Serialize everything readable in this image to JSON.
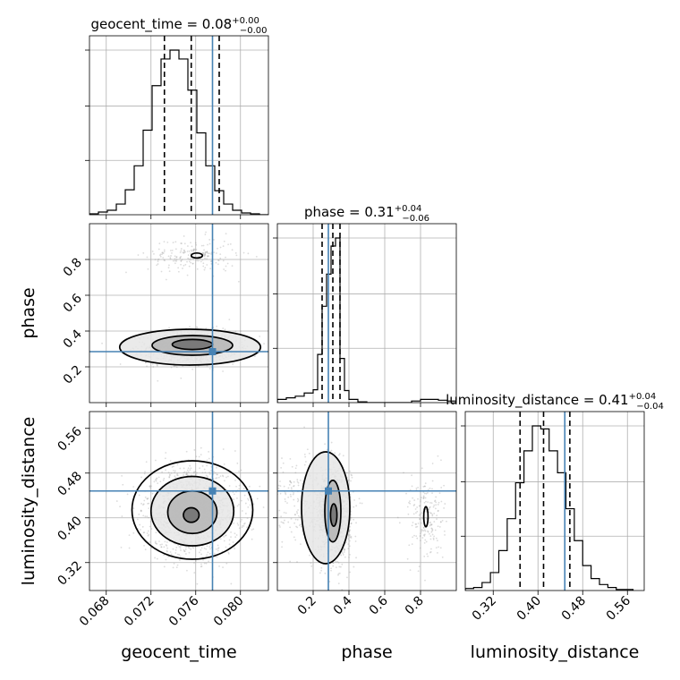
{
  "chart_data": {
    "type": "corner",
    "parameters": [
      "geocent_time",
      "phase",
      "luminosity_distance"
    ],
    "truth": {
      "geocent_time": 0.0775,
      "phase": 0.285,
      "luminosity_distance": 0.448
    },
    "colors": {
      "truth": "#4682b4",
      "hist": "#000000",
      "grid": "#b0b0b0",
      "scatter": "#9a9a9a"
    },
    "grid": true,
    "axes": {
      "geocent_time": {
        "range": [
          0.0665,
          0.0825
        ],
        "ticks": [
          0.068,
          0.072,
          0.076,
          0.08
        ],
        "tick_labels": [
          "0.068",
          "0.072",
          "0.076",
          "0.080"
        ]
      },
      "phase": {
        "range": [
          0.0,
          1.0
        ],
        "ticks": [
          0.2,
          0.4,
          0.6,
          0.8
        ],
        "tick_labels": [
          "0.2",
          "0.4",
          "0.6",
          "0.8"
        ]
      },
      "luminosity_distance": {
        "range": [
          0.27,
          0.59
        ],
        "ticks": [
          0.32,
          0.4,
          0.48,
          0.56
        ],
        "tick_labels": [
          "0.32",
          "0.40",
          "0.48",
          "0.56"
        ]
      }
    },
    "diagonal": [
      {
        "param": "geocent_time",
        "title": {
          "main": "geocent_time = 0.08",
          "sup": "+0.00",
          "sub": "−0.00"
        },
        "quantiles": [
          0.0732,
          0.0756,
          0.0781
        ],
        "bins": [
          0.0665,
          0.0673,
          0.0681,
          0.0689,
          0.0697,
          0.0705,
          0.0713,
          0.0721,
          0.0729,
          0.0737,
          0.0745,
          0.0753,
          0.0761,
          0.0769,
          0.0777,
          0.0785,
          0.0793,
          0.0801,
          0.0809,
          0.0817,
          0.0825
        ],
        "counts": [
          1,
          3,
          5,
          12,
          28,
          55,
          95,
          145,
          175,
          185,
          175,
          140,
          92,
          55,
          27,
          12,
          5,
          2,
          1,
          0
        ]
      },
      {
        "param": "phase",
        "title": {
          "main": "phase = 0.31",
          "sup": "+0.04",
          "sub": "−0.06"
        },
        "quantiles": [
          0.25,
          0.31,
          0.35
        ],
        "bins": [
          0.0,
          0.05,
          0.1,
          0.15,
          0.2,
          0.225,
          0.25,
          0.275,
          0.3,
          0.325,
          0.35,
          0.375,
          0.4,
          0.45,
          0.5,
          0.55,
          0.6,
          0.65,
          0.7,
          0.75,
          0.8,
          0.85,
          0.9,
          0.95,
          1.0
        ],
        "counts": [
          4,
          6,
          8,
          12,
          16,
          60,
          120,
          160,
          195,
          205,
          55,
          15,
          4,
          1,
          0,
          0,
          0,
          0,
          0,
          2,
          4,
          4,
          3,
          2
        ]
      },
      {
        "param": "luminosity_distance",
        "title": {
          "main": "luminosity_distance = 0.41",
          "sup": "+0.04",
          "sub": "−0.04"
        },
        "quantiles": [
          0.368,
          0.41,
          0.457
        ],
        "bins": [
          0.27,
          0.285,
          0.3,
          0.315,
          0.33,
          0.345,
          0.36,
          0.375,
          0.39,
          0.405,
          0.42,
          0.435,
          0.45,
          0.465,
          0.48,
          0.495,
          0.51,
          0.525,
          0.54,
          0.555,
          0.57
        ],
        "counts": [
          2,
          3,
          8,
          18,
          40,
          72,
          108,
          140,
          165,
          162,
          140,
          118,
          82,
          50,
          25,
          12,
          6,
          3,
          1,
          1
        ]
      }
    ],
    "scatter_2d": [
      {
        "x": "geocent_time",
        "y": "phase",
        "clusters": [
          {
            "center": [
              0.0757,
              0.31
            ],
            "sd": [
              0.002,
              0.045
            ],
            "weight": 0.88
          },
          {
            "center": [
              0.0757,
              0.82
            ],
            "sd": [
              0.002,
              0.05
            ],
            "weight": 0.12
          }
        ],
        "contours": [
          {
            "center": [
              0.0757,
              0.325
            ],
            "r": [
              0.0018,
              0.028
            ]
          },
          {
            "center": [
              0.0757,
              0.32
            ],
            "r": [
              0.0036,
              0.055
            ]
          },
          {
            "center": [
              0.0755,
              0.31
            ],
            "r": [
              0.0063,
              0.1
            ]
          },
          {
            "center": [
              0.0761,
              0.822
            ],
            "r": [
              0.0005,
              0.014
            ]
          }
        ]
      },
      {
        "x": "geocent_time",
        "y": "luminosity_distance",
        "clusters": [
          {
            "center": [
              0.0757,
              0.412
            ],
            "sd": [
              0.0021,
              0.038
            ],
            "weight": 1.0
          }
        ],
        "contours": [
          {
            "center": [
              0.0756,
              0.405
            ],
            "r": [
              0.0007,
              0.013
            ]
          },
          {
            "center": [
              0.0757,
              0.41
            ],
            "r": [
              0.0022,
              0.038
            ]
          },
          {
            "center": [
              0.0757,
              0.412
            ],
            "r": [
              0.0037,
              0.062
            ]
          },
          {
            "center": [
              0.0757,
              0.414
            ],
            "r": [
              0.0054,
              0.088
            ]
          }
        ]
      },
      {
        "x": "phase",
        "y": "luminosity_distance",
        "clusters": [
          {
            "center": [
              0.31,
              0.412
            ],
            "sd": [
              0.05,
              0.04
            ],
            "weight": 0.78
          },
          {
            "center": [
              0.1,
              0.43
            ],
            "sd": [
              0.07,
              0.04
            ],
            "weight": 0.1
          },
          {
            "center": [
              0.83,
              0.4
            ],
            "sd": [
              0.05,
              0.04
            ],
            "weight": 0.12
          }
        ],
        "contours": [
          {
            "center": [
              0.315,
              0.405
            ],
            "r": [
              0.018,
              0.02
            ]
          },
          {
            "center": [
              0.31,
              0.412
            ],
            "r": [
              0.045,
              0.055
            ]
          },
          {
            "center": [
              0.27,
              0.418
            ],
            "r": [
              0.135,
              0.1
            ]
          },
          {
            "center": [
              0.83,
              0.402
            ],
            "r": [
              0.012,
              0.018
            ]
          }
        ]
      }
    ]
  }
}
